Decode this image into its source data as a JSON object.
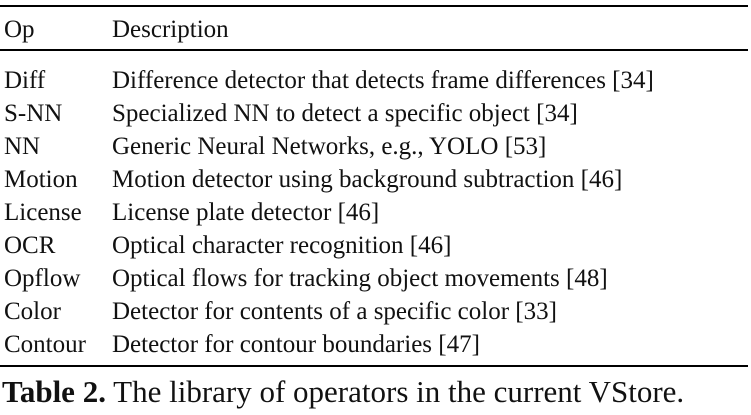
{
  "table": {
    "headers": [
      "Op",
      "Description"
    ],
    "rows": [
      {
        "op": "Diff",
        "description": "Difference detector that detects frame differences [34]"
      },
      {
        "op": "S-NN",
        "description": "Specialized NN to detect a specific object [34]"
      },
      {
        "op": "NN",
        "description": "Generic Neural Networks, e.g., YOLO [53]"
      },
      {
        "op": "Motion",
        "description": "Motion detector using background subtraction [46]"
      },
      {
        "op": "License",
        "description": "License plate detector [46]"
      },
      {
        "op": "OCR",
        "description": "Optical character recognition [46]"
      },
      {
        "op": "Opflow",
        "description": "Optical flows for tracking object movements [48]"
      },
      {
        "op": "Color",
        "description": "Detector for contents of a specific color [33]"
      },
      {
        "op": "Contour",
        "description": "Detector for contour boundaries [47]"
      }
    ]
  },
  "caption": {
    "label": "Table 2.",
    "text": " The library of operators in the current VStore."
  }
}
